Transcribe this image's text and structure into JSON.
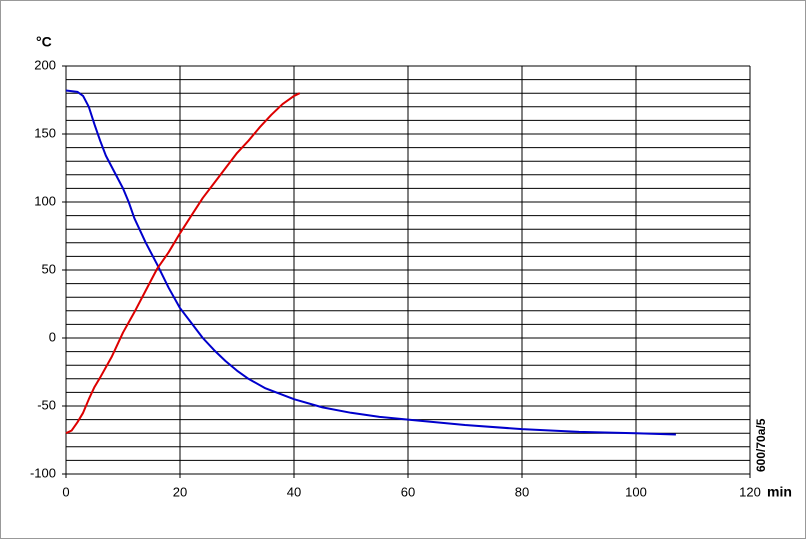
{
  "chart_data": {
    "type": "line",
    "y_label": "°C",
    "x_label": "min",
    "annotation": "600/70a/5",
    "xlim": [
      0,
      120
    ],
    "xticks": [
      0,
      20,
      40,
      60,
      80,
      100,
      120
    ],
    "ylim": [
      -100,
      200
    ],
    "yticks": [
      -100,
      -50,
      0,
      50,
      100,
      150,
      200
    ],
    "ygrid": [
      -90,
      -80,
      -70,
      -60,
      -40,
      -30,
      -20,
      -10,
      10,
      20,
      30,
      40,
      60,
      70,
      80,
      90,
      110,
      120,
      130,
      140,
      160,
      170,
      180,
      190
    ],
    "grid": true,
    "series": [
      {
        "color": "#0000cc",
        "x": [
          0,
          2,
          3,
          4,
          5,
          6,
          7,
          8,
          10,
          11,
          12,
          14,
          16,
          18,
          20,
          22,
          24,
          26,
          28,
          30,
          32,
          35,
          40,
          45,
          50,
          55,
          60,
          70,
          80,
          90,
          100,
          107
        ],
        "values": [
          182,
          181,
          178,
          170,
          157,
          145,
          134,
          126,
          110,
          100,
          88,
          70,
          54,
          37,
          22,
          11,
          0,
          -9,
          -17,
          -24,
          -30,
          -37,
          -45,
          -51,
          -55,
          -58,
          -60,
          -64,
          -67,
          -69,
          -70,
          -71
        ]
      },
      {
        "color": "#dd0000",
        "x": [
          0,
          1,
          2,
          3,
          4,
          5,
          6,
          8,
          10,
          12,
          14,
          16,
          18,
          20,
          22,
          24,
          26,
          28,
          30,
          32,
          34,
          36,
          38,
          40,
          41
        ],
        "values": [
          -70,
          -68,
          -62,
          -55,
          -45,
          -36,
          -29,
          -14,
          4,
          19,
          35,
          51,
          63,
          77,
          90,
          103,
          114,
          125,
          136,
          145,
          155,
          164,
          172,
          178,
          180
        ]
      }
    ]
  }
}
